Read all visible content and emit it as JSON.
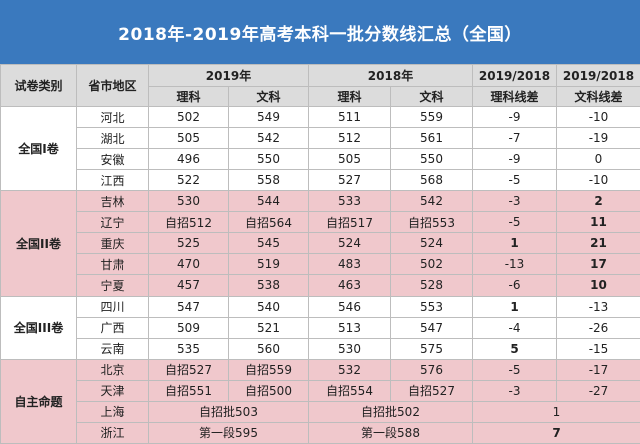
{
  "title": "2018年-2019年高考本科一批分数线汇总（全国）",
  "header": {
    "col_type": "试卷类别",
    "col_region": "省市地区",
    "year_2019": "2019年",
    "year_2018": "2018年",
    "diff_sci": "2019/2018",
    "diff_art": "2019/2018",
    "sci": "理科",
    "art": "文科",
    "sci_diff": "理科线差",
    "art_diff": "文科线差"
  },
  "groups": [
    "全国I卷",
    "全国II卷",
    "全国III卷",
    "自主命题"
  ],
  "rows": [
    [
      "河北",
      "502",
      "549",
      "511",
      "559",
      "-9",
      "-10"
    ],
    [
      "湖北",
      "505",
      "542",
      "512",
      "561",
      "-7",
      "-19"
    ],
    [
      "安徽",
      "496",
      "550",
      "505",
      "550",
      "-9",
      "0"
    ],
    [
      "江西",
      "522",
      "558",
      "527",
      "568",
      "-5",
      "-10"
    ],
    [
      "吉林",
      "530",
      "544",
      "533",
      "542",
      "-3",
      "2"
    ],
    [
      "辽宁",
      "自招512",
      "自招564",
      "自招517",
      "自招553",
      "-5",
      "11"
    ],
    [
      "重庆",
      "525",
      "545",
      "524",
      "524",
      "1",
      "21"
    ],
    [
      "甘肃",
      "470",
      "519",
      "483",
      "502",
      "-13",
      "17"
    ],
    [
      "宁夏",
      "457",
      "538",
      "463",
      "528",
      "-6",
      "10"
    ],
    [
      "四川",
      "547",
      "540",
      "546",
      "553",
      "1",
      "-13"
    ],
    [
      "广西",
      "509",
      "521",
      "513",
      "547",
      "-4",
      "-26"
    ],
    [
      "云南",
      "535",
      "560",
      "530",
      "575",
      "5",
      "-15"
    ],
    [
      "北京",
      "自招527",
      "自招559",
      "532",
      "576",
      "-5",
      "-17"
    ],
    [
      "天津",
      "自招551",
      "自招500",
      "自招554",
      "自招527",
      "-3",
      "-27"
    ]
  ],
  "merged_rows": [
    [
      "上海",
      "自招批503",
      "自招批502",
      "1"
    ],
    [
      "浙江",
      "第一段595",
      "第一段588",
      "7"
    ]
  ]
}
